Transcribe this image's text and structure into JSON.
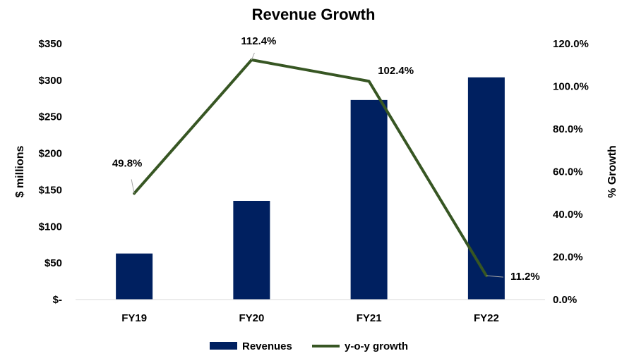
{
  "chart_data": {
    "type": "bar",
    "title": "Revenue Growth",
    "categories": [
      "FY19",
      "FY20",
      "FY21",
      "FY22"
    ],
    "series": [
      {
        "name": "Revenues",
        "type": "bar",
        "axis": "left",
        "color": "#002060",
        "values": [
          63,
          135,
          273,
          304
        ]
      },
      {
        "name": "y-o-y growth",
        "type": "line",
        "axis": "right",
        "color": "#375623",
        "values": [
          49.8,
          112.4,
          102.4,
          11.2
        ],
        "labels": [
          "49.8%",
          "112.4%",
          "102.4%",
          "11.2%"
        ]
      }
    ],
    "ylabel": "$ millions",
    "ylabel_right": "% Growth",
    "ylim": [
      0,
      350
    ],
    "ylim_right": [
      0,
      120
    ],
    "yticks": [
      0,
      50,
      100,
      150,
      200,
      250,
      300,
      350
    ],
    "ytick_labels": [
      "$-",
      "$50",
      "$100",
      "$150",
      "$200",
      "$250",
      "$300",
      "$350"
    ],
    "yticks_right": [
      0,
      20,
      40,
      60,
      80,
      100,
      120
    ],
    "ytick_labels_right": [
      "0.0%",
      "20.0%",
      "40.0%",
      "60.0%",
      "80.0%",
      "100.0%",
      "120.0%"
    ],
    "grid": false,
    "legend_position": "bottom"
  }
}
